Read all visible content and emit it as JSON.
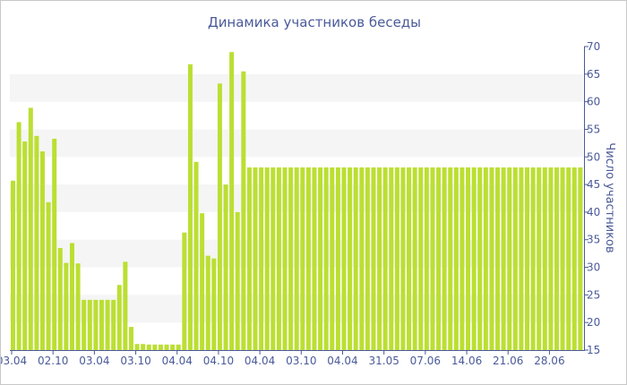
{
  "chart_data": {
    "type": "bar",
    "title": "Динамика участников беседы",
    "xlabel": "",
    "ylabel": "Число участников",
    "ylim": [
      15,
      70
    ],
    "yticks": [
      15,
      20,
      25,
      30,
      35,
      40,
      45,
      50,
      55,
      60,
      65,
      70
    ],
    "x_tick_labels": [
      "03.04",
      "02.10",
      "03.04",
      "03.10",
      "04.04",
      "04.10",
      "04.04",
      "03.10",
      "04.04",
      "31.05",
      "07.06",
      "14.06",
      "21.06",
      "28.06"
    ],
    "x_tick_bar_index": [
      0,
      7,
      14,
      21,
      28,
      35,
      42,
      49,
      56,
      63,
      70,
      77,
      84,
      91
    ],
    "grid": "horizontal bands",
    "legend": "none",
    "bar_color": "#bbdf32",
    "values": [
      45.7,
      56.3,
      52.8,
      58.9,
      53.8,
      51,
      41.8,
      53.3,
      33.5,
      30.8,
      34.4,
      30.7,
      24.1,
      24.1,
      24.1,
      24.1,
      24.1,
      24.1,
      26.8,
      31,
      19.2,
      16.1,
      16.1,
      16,
      16,
      16,
      16,
      16,
      16,
      36.3,
      66.8,
      49.1,
      39.8,
      32.1,
      31.6,
      63.3,
      45,
      69,
      40,
      65.5,
      48.1,
      48.1,
      48.1,
      48.1,
      48.1,
      48.1,
      48.1,
      48.1,
      48.1,
      48.1,
      48.1,
      48.1,
      48.1,
      48.1,
      48.1,
      48.1,
      48.1,
      48.1,
      48.1,
      48.1,
      48.1,
      48.1,
      48.1,
      48.1,
      48.1,
      48.1,
      48.1,
      48.1,
      48.1,
      48.1,
      48.1,
      48.1,
      48.1,
      48.1,
      48.1,
      48.1,
      48.1,
      48.1,
      48.1,
      48.1,
      48.1,
      48.1,
      48.1,
      48.1,
      48.1,
      48.1,
      48.1,
      48.1,
      48.1,
      48.1,
      48.1,
      48.1,
      48.1,
      48.1,
      48.1,
      48.1,
      48.1
    ]
  }
}
